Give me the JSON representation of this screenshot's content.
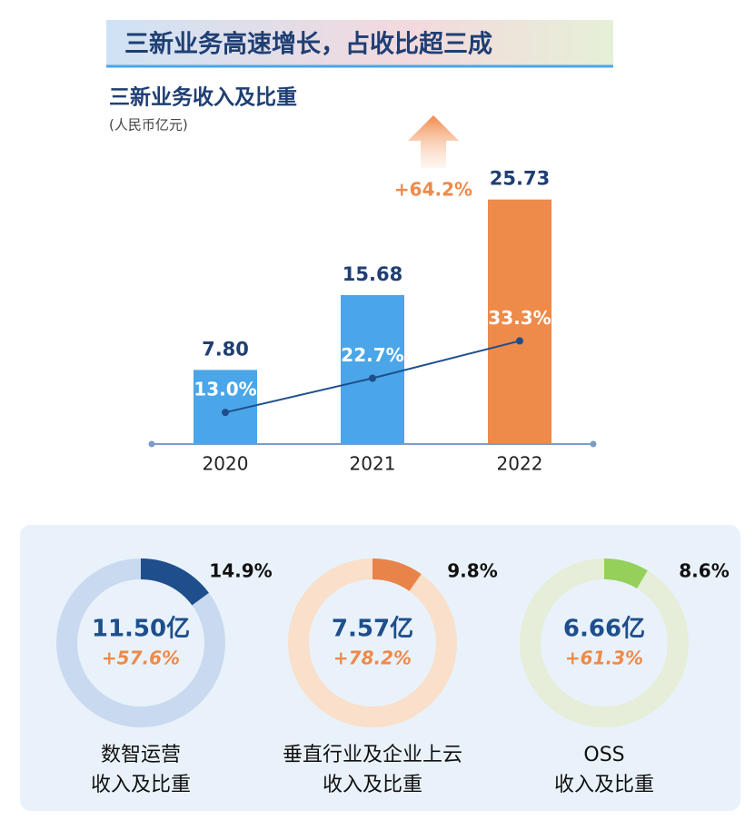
{
  "header": {
    "title": "三新业务高速增长，占收比超三成"
  },
  "chart_data": [
    {
      "type": "bar",
      "title": "三新业务收入及比重",
      "subtitle": "(人民币亿元)",
      "categories": [
        "2020",
        "2021",
        "2022"
      ],
      "values": [
        7.8,
        15.68,
        25.73
      ],
      "value_labels": [
        "7.80",
        "15.68",
        "25.73"
      ],
      "colors": [
        "#4aa6e8",
        "#4aa6e8",
        "#ee8a4a"
      ],
      "ylim": [
        0,
        30
      ],
      "line": {
        "values": [
          13.0,
          22.7,
          33.3
        ],
        "value_labels": [
          "13.0%",
          "22.7%",
          "33.3%"
        ],
        "color": "#1f4e8c",
        "axis": "y2"
      },
      "y2lim": [
        4,
        85
      ],
      "annotation": "+64.2%"
    },
    {
      "type": "donut",
      "values": [
        14.9
      ],
      "value_labels": [
        "14.9%"
      ],
      "color": "#1f4e8c",
      "track_color": "#c9d9f0",
      "center_text": "11.50亿",
      "growth": "+57.6%",
      "label_lines": [
        "数智运营",
        "收入及比重"
      ]
    },
    {
      "type": "donut",
      "values": [
        9.8
      ],
      "value_labels": [
        "9.8%"
      ],
      "color": "#e8834a",
      "track_color": "#fadfca",
      "center_text": "7.57亿",
      "growth": "+78.2%",
      "label_lines": [
        "垂直行业及企业上云",
        "收入及比重"
      ]
    },
    {
      "type": "donut",
      "values": [
        8.6
      ],
      "value_labels": [
        "8.6%"
      ],
      "color": "#94d05a",
      "track_color": "#e6edd8",
      "center_text": "6.66亿",
      "growth": "+61.3%",
      "label_lines": [
        "OSS",
        "收入及比重"
      ]
    }
  ]
}
